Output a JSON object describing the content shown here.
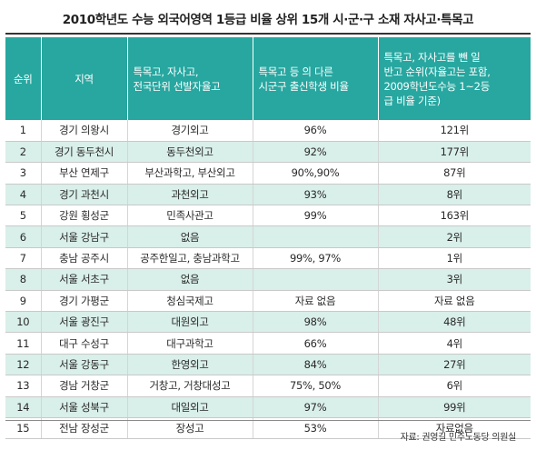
{
  "title": "2010학년도 수능 외국어영역 1등급 비율 상위 15개 시·군·구 소재 자사고·특목고",
  "headers": [
    "순위",
    "지역",
    "특목고, 자사고,\n전국단위 선발자율고",
    "특목고 등 의 다른\n시군구 출신학생 비율",
    "특목고, 자사고를 뺀 일\n반고 순위(자율고는 포함,\n2009학년도수능 1~2등\n급 비율 기준)"
  ],
  "rows": [
    [
      "1",
      "경기 의왕시",
      "경기외고",
      "96%",
      "121위"
    ],
    [
      "2",
      "경기 동두천시",
      "동두천외고",
      "92%",
      "177위"
    ],
    [
      "3",
      "부산 연제구",
      "부산과학고, 부산외고",
      "90%,90%",
      "87위"
    ],
    [
      "4",
      "경기 과천시",
      "과천외고",
      "93%",
      "8위"
    ],
    [
      "5",
      "강원 횡성군",
      "민족사관고",
      "99%",
      "163위"
    ],
    [
      "6",
      "서울 강남구",
      "없음",
      "",
      "2위"
    ],
    [
      "7",
      "충남 공주시",
      "공주한일고, 충남과학고",
      "99%, 97%",
      "1위"
    ],
    [
      "8",
      "서울 서초구",
      "없음",
      "",
      "3위"
    ],
    [
      "9",
      "경기 가평군",
      "청심국제고",
      "자료 없음",
      "자료 없음"
    ],
    [
      "10",
      "서울 광진구",
      "대원외고",
      "98%",
      "48위"
    ],
    [
      "11",
      "대구 수성구",
      "대구과학고",
      "66%",
      "4위"
    ],
    [
      "12",
      "서울 강동구",
      "한영외고",
      "84%",
      "27위"
    ],
    [
      "13",
      "경남 거창군",
      "거창고, 거창대성고",
      "75%, 50%",
      "6위"
    ],
    [
      "14",
      "서울 성북구",
      "대일외고",
      "97%",
      "99위"
    ],
    [
      "15",
      "전남 장성군",
      "장성고",
      "53%",
      "자료없음"
    ]
  ],
  "source": "자료: 권영길 민주노동당 의원실",
  "colors": {
    "header_bg": "#27a7a0",
    "stripe_bg": "#d9efe9"
  }
}
